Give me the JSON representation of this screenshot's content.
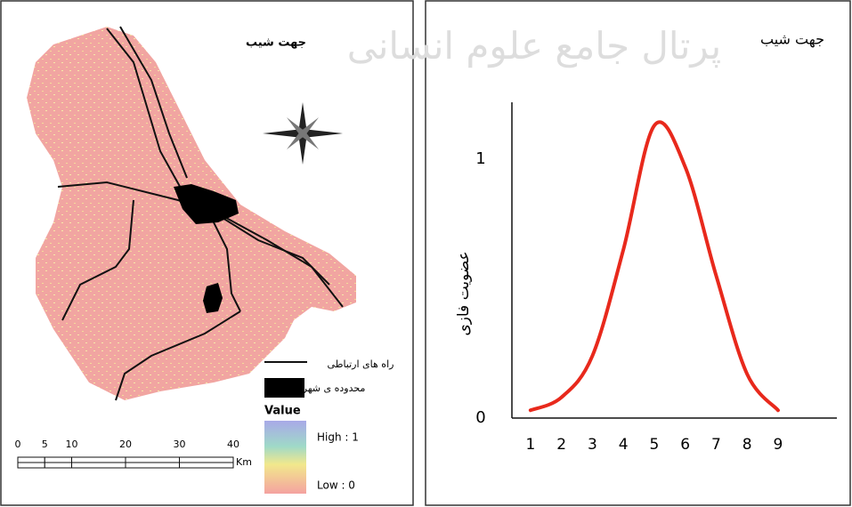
{
  "map": {
    "title": "جهت شیب",
    "legend": {
      "roads": "راه های ارتباطی",
      "city": "محدوده ی شهر",
      "value_title": "Value",
      "high": "High : 1",
      "low": "Low : 0"
    },
    "scale": {
      "ticks": [
        0,
        5,
        10,
        20,
        30,
        40
      ],
      "unit": "Km"
    }
  },
  "watermark": "پرتال جامع علوم انسانی",
  "chart_data": {
    "type": "line",
    "title": "جهت شیب",
    "y_label": "عضویت فازی",
    "x": [
      1,
      2,
      3,
      4,
      5,
      6,
      7,
      8,
      9
    ],
    "values": [
      0.03,
      0.08,
      0.24,
      0.65,
      1.13,
      0.97,
      0.55,
      0.17,
      0.03
    ],
    "color": "#e8291c",
    "xlim": [
      0.4,
      10.9
    ],
    "ylim": [
      0,
      1.22
    ],
    "xticks": [
      1,
      2,
      3,
      4,
      5,
      6,
      7,
      8,
      9
    ],
    "yticks": [
      0,
      1
    ],
    "grid": false
  }
}
